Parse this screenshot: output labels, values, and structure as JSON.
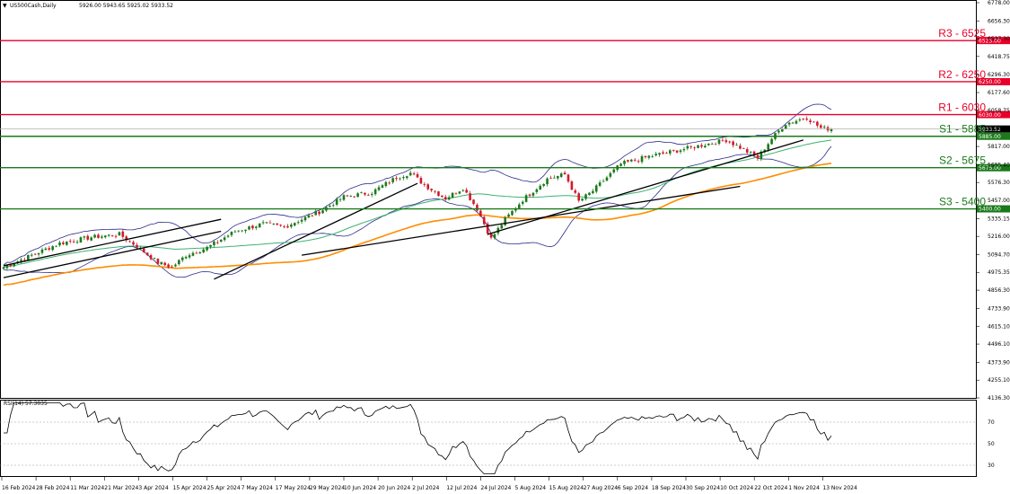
{
  "header": {
    "symbol": "US500Cash,Daily",
    "ohlc": "5926.00 5943.65 5925.02 5933.52"
  },
  "rsi": {
    "label": "RSI(14) 57.3035",
    "levels": [
      70,
      50,
      30
    ],
    "value": 57.3035
  },
  "price_axis": {
    "ticks": [
      6778.0,
      6656.3,
      6537.3,
      6418.75,
      6296.3,
      6177.6,
      6058.75,
      5936.4,
      5817.0,
      5695.4,
      5576.3,
      5457.0,
      5335.15,
      5216.0,
      5094.7,
      4975.35,
      4856.3,
      4733.9,
      4615.1,
      4496.1,
      4373.9,
      4255.1,
      4136.3
    ]
  },
  "date_labels": [
    "16 Feb 2024",
    "28 Feb 2024",
    "11 Mar 2024",
    "21 Mar 2024",
    "3 Apr 2024",
    "15 Apr 2024",
    "25 Apr 2024",
    "7 May 2024",
    "17 May 2024",
    "29 May 2024",
    "10 Jun 2024",
    "20 Jun 2024",
    "2 Jul 2024",
    "12 Jul 2024",
    "24 Jul 2024",
    "5 Aug 2024",
    "15 Aug 2024",
    "27 Aug 2024",
    "6 Sep 2024",
    "18 Sep 2024",
    "30 Sep 2024",
    "10 Oct 2024",
    "22 Oct 2024",
    "1 Nov 2024",
    "13 Nov 2024"
  ],
  "levels": [
    {
      "name": "R3 - 6525",
      "value": 6525,
      "tag": "6525.00",
      "color": "#e8002a"
    },
    {
      "name": "R2 - 6250",
      "value": 6250,
      "tag": "6250.00",
      "color": "#e8002a"
    },
    {
      "name": "R1 - 6030",
      "value": 6030,
      "tag": "6030.00",
      "color": "#e8002a"
    },
    {
      "name": "S1 - 5885",
      "value": 5885,
      "tag": "5885.00",
      "color": "#1a7a1a"
    },
    {
      "name": "S2 - 5675",
      "value": 5675,
      "tag": "5675.00",
      "color": "#1a7a1a"
    },
    {
      "name": "S3 - 5400",
      "value": 5400,
      "tag": "5400.00",
      "color": "#1a7a1a"
    }
  ],
  "current_price": {
    "value": 5933.52,
    "tag": "5933.52"
  },
  "colors": {
    "bull": "#1a7a1a",
    "bear": "#d11a2a",
    "orange_ma": "#ff8c00",
    "green_ma": "#3cb371",
    "bands": "#2b2b8c",
    "trend": "#000000"
  },
  "chart_data": {
    "type": "candlestick",
    "title": "US500Cash,Daily",
    "ylim": [
      4136.3,
      6778.0
    ],
    "x_tick_labels": [
      "16 Feb 2024",
      "28 Feb 2024",
      "11 Mar 2024",
      "21 Mar 2024",
      "3 Apr 2024",
      "15 Apr 2024",
      "25 Apr 2024",
      "7 May 2024",
      "17 May 2024",
      "29 May 2024",
      "10 Jun 2024",
      "20 Jun 2024",
      "2 Jul 2024",
      "12 Jul 2024",
      "24 Jul 2024",
      "5 Aug 2024",
      "15 Aug 2024",
      "27 Aug 2024",
      "6 Sep 2024",
      "18 Sep 2024",
      "30 Sep 2024",
      "10 Oct 2024",
      "22 Oct 2024",
      "1 Nov 2024",
      "13 Nov 2024"
    ],
    "close_path": [
      {
        "i": 0,
        "v": 5010
      },
      {
        "i": 8,
        "v": 5090
      },
      {
        "i": 16,
        "v": 5170
      },
      {
        "i": 25,
        "v": 5210
      },
      {
        "i": 33,
        "v": 5230
      },
      {
        "i": 38,
        "v": 5150
      },
      {
        "i": 44,
        "v": 5040
      },
      {
        "i": 48,
        "v": 5010
      },
      {
        "i": 52,
        "v": 5090
      },
      {
        "i": 58,
        "v": 5140
      },
      {
        "i": 66,
        "v": 5250
      },
      {
        "i": 74,
        "v": 5300
      },
      {
        "i": 80,
        "v": 5280
      },
      {
        "i": 90,
        "v": 5380
      },
      {
        "i": 97,
        "v": 5480
      },
      {
        "i": 105,
        "v": 5510
      },
      {
        "i": 112,
        "v": 5610
      },
      {
        "i": 116,
        "v": 5640
      },
      {
        "i": 120,
        "v": 5560
      },
      {
        "i": 126,
        "v": 5470
      },
      {
        "i": 131,
        "v": 5540
      },
      {
        "i": 135,
        "v": 5400
      },
      {
        "i": 139,
        "v": 5200
      },
      {
        "i": 143,
        "v": 5330
      },
      {
        "i": 148,
        "v": 5460
      },
      {
        "i": 155,
        "v": 5600
      },
      {
        "i": 160,
        "v": 5630
      },
      {
        "i": 164,
        "v": 5450
      },
      {
        "i": 168,
        "v": 5520
      },
      {
        "i": 176,
        "v": 5700
      },
      {
        "i": 184,
        "v": 5750
      },
      {
        "i": 190,
        "v": 5780
      },
      {
        "i": 198,
        "v": 5820
      },
      {
        "i": 206,
        "v": 5860
      },
      {
        "i": 210,
        "v": 5810
      },
      {
        "i": 215,
        "v": 5740
      },
      {
        "i": 219,
        "v": 5870
      },
      {
        "i": 223,
        "v": 5970
      },
      {
        "i": 229,
        "v": 6010
      },
      {
        "i": 233,
        "v": 5940
      },
      {
        "i": 236,
        "v": 5933.52
      }
    ],
    "total_bars": 237,
    "indicators": [
      "Bollinger Bands",
      "SMA (green)",
      "SMA (orange)"
    ],
    "rsi_period": 14,
    "rsi_last": 57.3035,
    "support_resistance": [
      6525,
      6250,
      6030,
      5885,
      5675,
      5400
    ]
  }
}
